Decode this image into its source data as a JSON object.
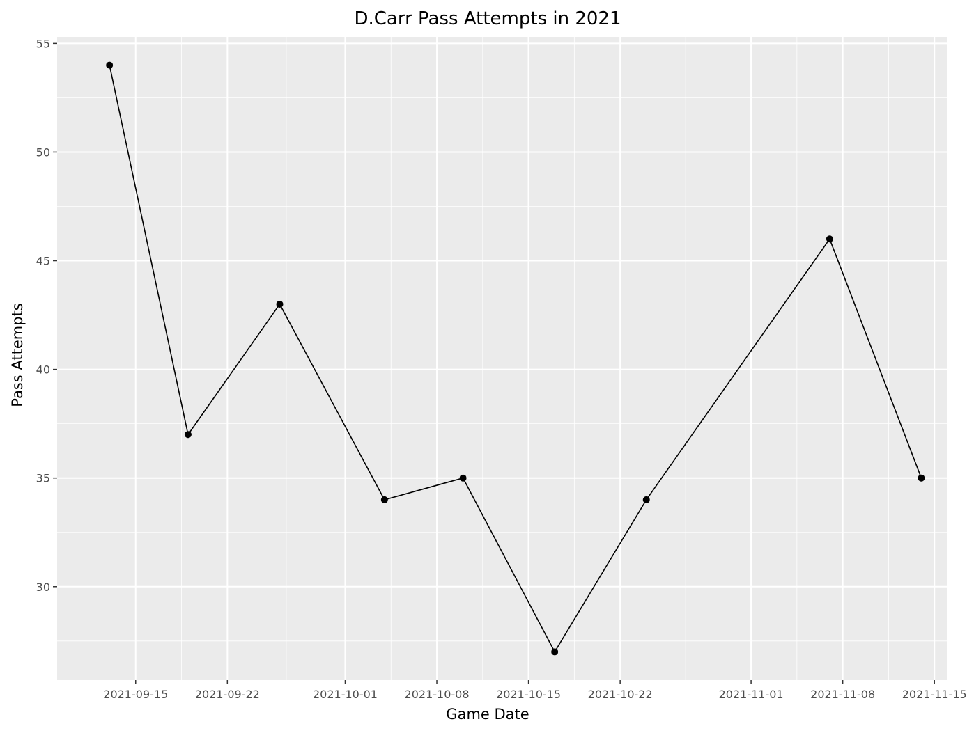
{
  "chart_data": {
    "type": "line",
    "title": "D.Carr Pass Attempts in 2021",
    "xlabel": "Game Date",
    "ylabel": "Pass Attempts",
    "x_type": "date",
    "xlim": [
      "2021-09-09",
      "2021-11-16"
    ],
    "ylim": [
      25.7,
      55.3
    ],
    "x_ticks": [
      "2021-09-15",
      "2021-09-22",
      "2021-10-01",
      "2021-10-08",
      "2021-10-15",
      "2021-10-22",
      "2021-11-01",
      "2021-11-08",
      "2021-11-15"
    ],
    "y_ticks": [
      30,
      35,
      40,
      45,
      50,
      55
    ],
    "grid": true,
    "legend": "none",
    "colors": {
      "panel_background": "#EBEBEB",
      "grid_major": "#FFFFFF",
      "line": "#000000",
      "point": "#000000"
    },
    "series": [
      {
        "x": [
          "2021-09-13",
          "2021-09-19",
          "2021-09-26",
          "2021-10-04",
          "2021-10-10",
          "2021-10-17",
          "2021-10-24",
          "2021-11-07",
          "2021-11-14"
        ],
        "y": [
          54,
          37,
          43,
          34,
          35,
          27,
          34,
          46,
          35
        ]
      }
    ]
  }
}
